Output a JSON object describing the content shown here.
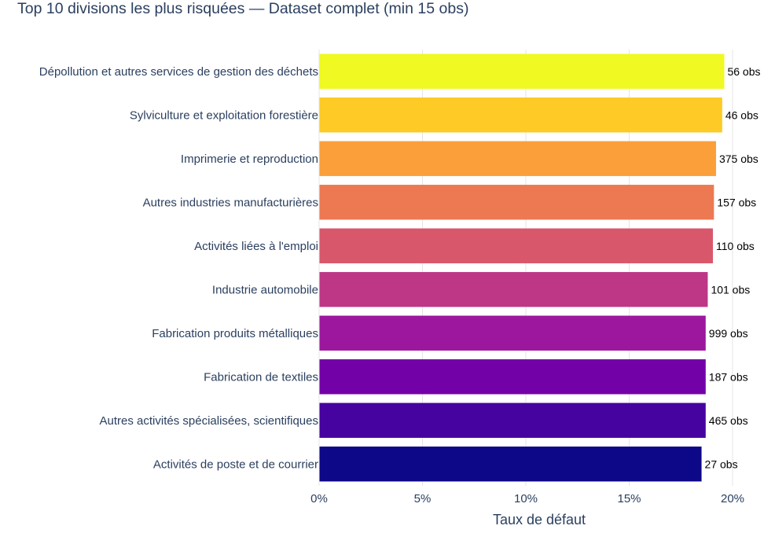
{
  "title": "Top 10 divisions les plus risquées — Dataset complet (min 15 obs)",
  "chart_data": {
    "type": "bar",
    "orientation": "horizontal",
    "title": "Top 10 divisions les plus risquées — Dataset complet (min 15 obs)",
    "xlabel": "Taux de défaut",
    "ylabel": "",
    "xlim": [
      0,
      0.2
    ],
    "x_ticks": [
      "0%",
      "5%",
      "10%",
      "15%",
      "20%"
    ],
    "grid": true,
    "categories": [
      "Dépollution et autres services de gestion des déchets",
      "Sylviculture et exploitation forestière",
      "Imprimerie et reproduction",
      "Autres industries manufacturières",
      "Activités liées à l'emploi",
      "Industrie automobile",
      "Fabrication produits métalliques",
      "Fabrication de textiles",
      "Autres activités spécialisées, scientifiques",
      "Activités de poste et de courrier"
    ],
    "values": [
      0.196,
      0.195,
      0.192,
      0.191,
      0.1905,
      0.188,
      0.187,
      0.187,
      0.187,
      0.185
    ],
    "data_labels": [
      "56 obs",
      "46 obs",
      "375 obs",
      "157 obs",
      "110 obs",
      "101 obs",
      "999 obs",
      "187 obs",
      "465 obs",
      "27 obs"
    ],
    "colors": [
      "#f0f921",
      "#fdca26",
      "#fb9f3a",
      "#ed7953",
      "#d8576b",
      "#bd3786",
      "#9c179e",
      "#7201a8",
      "#46039f",
      "#0d0887"
    ]
  }
}
